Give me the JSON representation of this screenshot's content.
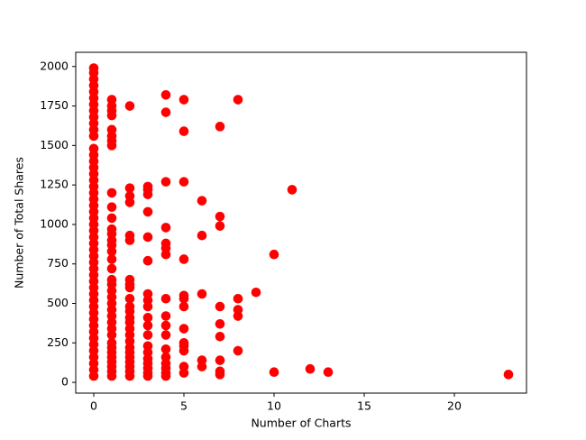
{
  "chart_data": {
    "type": "scatter",
    "xlabel": "Number of Charts",
    "ylabel": "Number of Total Shares",
    "color": "#ff0000",
    "xlim": [
      -1,
      24
    ],
    "ylim": [
      -68,
      2090
    ],
    "xticks": [
      0,
      5,
      10,
      15,
      20
    ],
    "yticks": [
      0,
      250,
      500,
      750,
      1000,
      1250,
      1500,
      1750,
      2000
    ],
    "x": [
      0,
      0,
      0,
      0,
      0,
      0,
      0,
      0,
      0,
      0,
      0,
      0,
      0,
      0,
      0,
      0,
      0,
      0,
      0,
      0,
      0,
      0,
      0,
      0,
      0,
      0,
      0,
      0,
      0,
      0,
      0,
      0,
      0,
      0,
      0,
      0,
      0,
      0,
      0,
      0,
      0,
      0,
      0,
      0,
      0,
      0,
      0,
      0,
      0,
      1,
      1,
      1,
      1,
      1,
      1,
      1,
      1,
      1,
      1,
      1,
      1,
      1,
      1,
      1,
      1,
      1,
      1,
      1,
      1,
      1,
      1,
      1,
      1,
      1,
      1,
      1,
      1,
      1,
      1,
      1,
      1,
      1,
      1,
      1,
      1,
      2,
      2,
      2,
      2,
      2,
      2,
      2,
      2,
      2,
      2,
      2,
      2,
      2,
      2,
      2,
      2,
      2,
      2,
      2,
      2,
      2,
      2,
      2,
      2,
      3,
      3,
      3,
      3,
      3,
      3,
      3,
      3,
      3,
      3,
      3,
      3,
      3,
      3,
      3,
      3,
      3,
      3,
      3,
      4,
      4,
      4,
      4,
      4,
      4,
      4,
      4,
      4,
      4,
      4,
      4,
      4,
      4,
      4,
      4,
      4,
      5,
      5,
      5,
      5,
      5,
      5,
      5,
      5,
      5,
      5,
      5,
      5,
      5,
      6,
      6,
      6,
      6,
      6,
      7,
      7,
      7,
      7,
      7,
      7,
      7,
      7,
      7,
      8,
      8,
      8,
      8,
      8,
      9,
      10,
      10,
      11,
      12,
      13,
      23
    ],
    "y": [
      40,
      80,
      120,
      160,
      200,
      240,
      280,
      320,
      360,
      400,
      440,
      480,
      520,
      560,
      600,
      640,
      680,
      720,
      760,
      800,
      840,
      880,
      920,
      960,
      1000,
      1040,
      1080,
      1120,
      1160,
      1200,
      1240,
      1280,
      1320,
      1360,
      1400,
      1440,
      1480,
      1560,
      1600,
      1640,
      1680,
      1720,
      1760,
      1800,
      1840,
      1880,
      1920,
      1960,
      1990,
      40,
      70,
      100,
      130,
      160,
      190,
      220,
      250,
      300,
      340,
      380,
      420,
      460,
      500,
      540,
      580,
      620,
      650,
      720,
      780,
      830,
      870,
      900,
      940,
      970,
      1040,
      1110,
      1200,
      1500,
      1530,
      1560,
      1600,
      1690,
      1720,
      1750,
      1790,
      40,
      70,
      100,
      130,
      160,
      190,
      220,
      260,
      300,
      340,
      380,
      410,
      450,
      480,
      530,
      600,
      620,
      650,
      900,
      930,
      1140,
      1180,
      1230,
      1750,
      40,
      60,
      90,
      120,
      150,
      190,
      230,
      300,
      360,
      410,
      480,
      520,
      560,
      770,
      920,
      1080,
      1190,
      1220,
      1240,
      40,
      60,
      90,
      120,
      160,
      210,
      300,
      360,
      420,
      530,
      810,
      850,
      880,
      980,
      1270,
      1710,
      1820,
      60,
      100,
      200,
      230,
      250,
      340,
      480,
      530,
      550,
      780,
      1270,
      1590,
      1790,
      100,
      140,
      560,
      930,
      1150,
      50,
      70,
      140,
      290,
      370,
      480,
      990,
      1050,
      1620,
      200,
      420,
      460,
      530,
      1790,
      570,
      65,
      810,
      1220,
      85,
      65,
      50
    ]
  }
}
